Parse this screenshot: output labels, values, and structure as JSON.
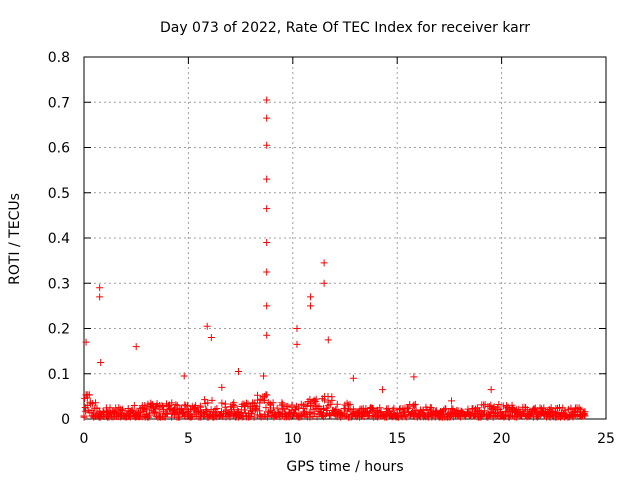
{
  "chart_data": {
    "type": "scatter",
    "title": "Day 073 of 2022, Rate Of TEC Index for receiver karr",
    "xlabel": "GPS time / hours",
    "ylabel": "ROTI / TECUs",
    "xlim": [
      0,
      25
    ],
    "ylim": [
      0,
      0.8
    ],
    "grid": true,
    "marker": "+",
    "color": "#ff0000",
    "x_ticks": [
      0,
      5,
      10,
      15,
      20,
      25
    ],
    "x_tick_labels": [
      "0",
      "5",
      "10",
      "15",
      "20",
      "25"
    ],
    "y_ticks": [
      0,
      0.1,
      0.2,
      0.3,
      0.4,
      0.5,
      0.6,
      0.7,
      0.8
    ],
    "y_tick_labels": [
      "0",
      "0.1",
      "0.2",
      "0.3",
      "0.4",
      "0.5",
      "0.6",
      "0.7",
      "0.8"
    ],
    "peaks": [
      {
        "x": 0.1,
        "y": 0.17
      },
      {
        "x": 0.75,
        "y": 0.29
      },
      {
        "x": 0.75,
        "y": 0.27
      },
      {
        "x": 0.8,
        "y": 0.125
      },
      {
        "x": 2.5,
        "y": 0.16
      },
      {
        "x": 4.8,
        "y": 0.095
      },
      {
        "x": 5.9,
        "y": 0.205
      },
      {
        "x": 6.1,
        "y": 0.18
      },
      {
        "x": 6.6,
        "y": 0.07
      },
      {
        "x": 7.4,
        "y": 0.105
      },
      {
        "x": 8.6,
        "y": 0.095
      },
      {
        "x": 8.75,
        "y": 0.705
      },
      {
        "x": 8.75,
        "y": 0.665
      },
      {
        "x": 8.75,
        "y": 0.605
      },
      {
        "x": 8.75,
        "y": 0.53
      },
      {
        "x": 8.75,
        "y": 0.465
      },
      {
        "x": 8.75,
        "y": 0.39
      },
      {
        "x": 8.75,
        "y": 0.325
      },
      {
        "x": 8.75,
        "y": 0.25
      },
      {
        "x": 8.75,
        "y": 0.185
      },
      {
        "x": 10.2,
        "y": 0.2
      },
      {
        "x": 10.2,
        "y": 0.165
      },
      {
        "x": 10.85,
        "y": 0.27
      },
      {
        "x": 10.85,
        "y": 0.25
      },
      {
        "x": 11.5,
        "y": 0.345
      },
      {
        "x": 11.5,
        "y": 0.3
      },
      {
        "x": 11.7,
        "y": 0.175
      },
      {
        "x": 12.9,
        "y": 0.09
      },
      {
        "x": 14.3,
        "y": 0.065
      },
      {
        "x": 15.8,
        "y": 0.093
      },
      {
        "x": 17.6,
        "y": 0.04
      },
      {
        "x": 19.5,
        "y": 0.065
      }
    ]
  }
}
